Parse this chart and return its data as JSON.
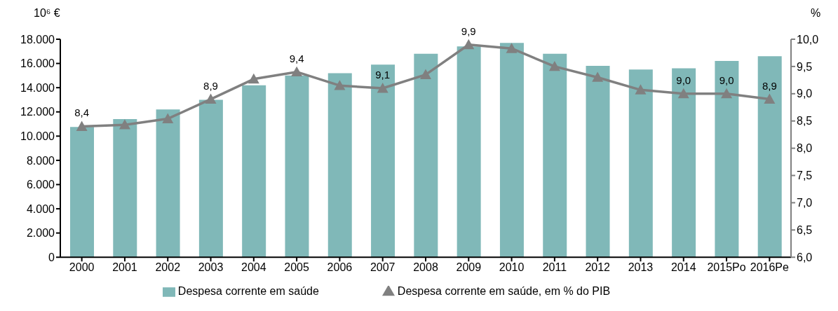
{
  "chart_data": {
    "type": "bar",
    "ylabel": "10⁶ €",
    "y2label": "%",
    "categories": [
      "2000",
      "2001",
      "2002",
      "2003",
      "2004",
      "2005",
      "2006",
      "2007",
      "2008",
      "2009",
      "2010",
      "2011",
      "2012",
      "2013",
      "2014",
      "2015Po",
      "2016Pe"
    ],
    "series": [
      {
        "name": "Despesa corrente em saúde",
        "color": "#80b8b8",
        "values": [
          10750,
          11400,
          12200,
          13000,
          14200,
          15000,
          15200,
          15900,
          16800,
          17400,
          17700,
          16800,
          15800,
          15500,
          15600,
          16200,
          16600
        ]
      },
      {
        "name": "Despesa corrente em saúde, em % do PIB",
        "type": "line",
        "axis": "y2",
        "color": "#808080",
        "marker": "triangle",
        "line_style": "solid",
        "values": [
          8.4,
          8.43,
          8.54,
          8.9,
          9.27,
          9.4,
          9.15,
          9.1,
          9.35,
          9.9,
          9.83,
          9.5,
          9.3,
          9.07,
          9.0,
          9.0,
          8.9
        ],
        "value_labels": [
          "8,4",
          null,
          null,
          "8,9",
          null,
          "9,4",
          null,
          "9,1",
          null,
          "9,9",
          null,
          null,
          null,
          null,
          "9,0",
          "9,0",
          "8,9"
        ]
      }
    ],
    "ylim": [
      0,
      18000
    ],
    "yticks": [
      {
        "value": 0,
        "label": "0"
      },
      {
        "value": 2000,
        "label": "2.000"
      },
      {
        "value": 4000,
        "label": "4.000"
      },
      {
        "value": 6000,
        "label": "6.000"
      },
      {
        "value": 8000,
        "label": "8.000"
      },
      {
        "value": 10000,
        "label": "10.000"
      },
      {
        "value": 12000,
        "label": "12.000"
      },
      {
        "value": 14000,
        "label": "14.000"
      },
      {
        "value": 16000,
        "label": "16.000"
      },
      {
        "value": 18000,
        "label": "18.000"
      }
    ],
    "y2lim": [
      6,
      10
    ],
    "y2ticks": [
      {
        "value": 6,
        "label": "6,0"
      },
      {
        "value": 6.5,
        "label": "6,5"
      },
      {
        "value": 7,
        "label": "7,0"
      },
      {
        "value": 7.5,
        "label": "7,5"
      },
      {
        "value": 8,
        "label": "8,0"
      },
      {
        "value": 8.5,
        "label": "8,5"
      },
      {
        "value": 9,
        "label": "9,0"
      },
      {
        "value": 9.5,
        "label": "9,5"
      },
      {
        "value": 10,
        "label": "10,0"
      }
    ],
    "grid": false,
    "legend": "bottom"
  }
}
